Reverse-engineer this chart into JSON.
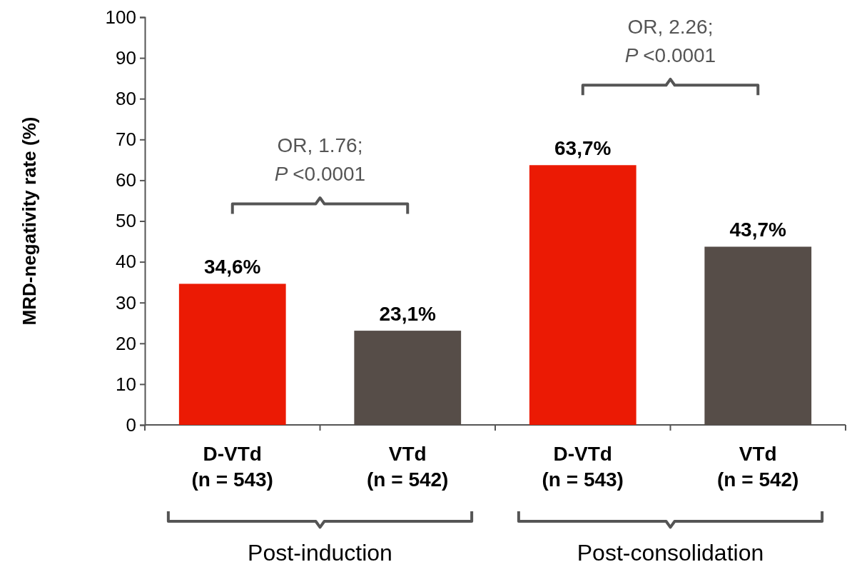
{
  "chart_data": {
    "type": "bar",
    "ylabel": "MRD-negativity rate (%)",
    "categories": [
      "D-VTd\n(n = 543)",
      "VTd\n(n = 542)",
      "D-VTd\n(n = 543)",
      "VTd\n(n = 542)"
    ],
    "values": [
      34.6,
      23.1,
      63.7,
      43.7
    ],
    "colors": [
      "#eb1a04",
      "#564d48",
      "#eb1a04",
      "#564d48"
    ],
    "value_labels": [
      "34,6%",
      "23,1%",
      "63,7%",
      "43,7%"
    ],
    "ylim": [
      0,
      100
    ],
    "yticks": [
      0,
      10,
      20,
      30,
      40,
      50,
      60,
      70,
      80,
      90,
      100
    ],
    "annotations": [
      "OR, 1.76;\nP <0.0001",
      "OR, 2.26;\nP <0.0001",
      "Post-induction",
      "Post-consolidation"
    ]
  }
}
